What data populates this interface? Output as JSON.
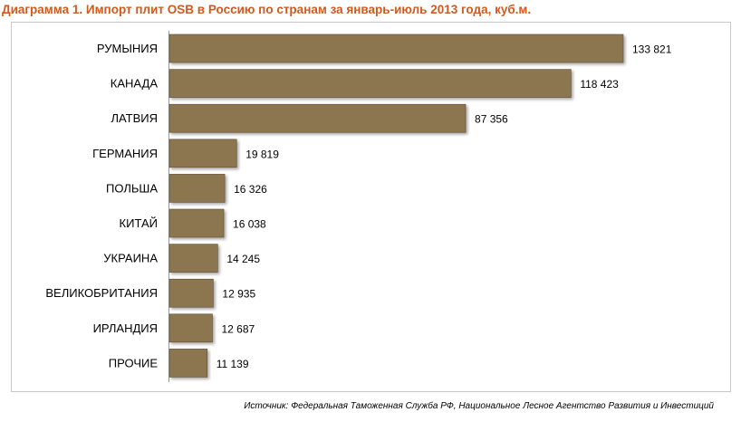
{
  "title": "Диаграмма 1. Импорт плит OSB в Россию по странам за январь-июль 2013 года, куб.м.",
  "source": "Источник: Федеральная Таможенная Служба РФ, Национальное Лесное Агентство Развития и Инвестиций",
  "colors": {
    "bar": "#8c7650",
    "bar_edge": "#5e4e33",
    "title": "#d05a1e"
  },
  "chart_data": {
    "type": "bar",
    "orientation": "horizontal",
    "title": "Диаграмма 1. Импорт плит OSB в Россию по странам за январь-июль 2013 года, куб.м.",
    "categories": [
      "РУМЫНИЯ",
      "КАНАДА",
      "ЛАТВИЯ",
      "ГЕРМАНИЯ",
      "ПОЛЬША",
      "КИТАЙ",
      "УКРАИНА",
      "ВЕЛИКОБРИТАНИЯ",
      "ИРЛАНДИЯ",
      "ПРОЧИЕ"
    ],
    "values": [
      133821,
      118423,
      87356,
      19819,
      16326,
      16038,
      14245,
      12935,
      12687,
      11139
    ],
    "value_labels": [
      "133 821",
      "118 423",
      "87 356",
      "19 819",
      "16 326",
      "16 038",
      "14 245",
      "12 935",
      "12 687",
      "11 139"
    ],
    "xlim": [
      0,
      133821
    ],
    "grid": false,
    "legend": "none"
  }
}
